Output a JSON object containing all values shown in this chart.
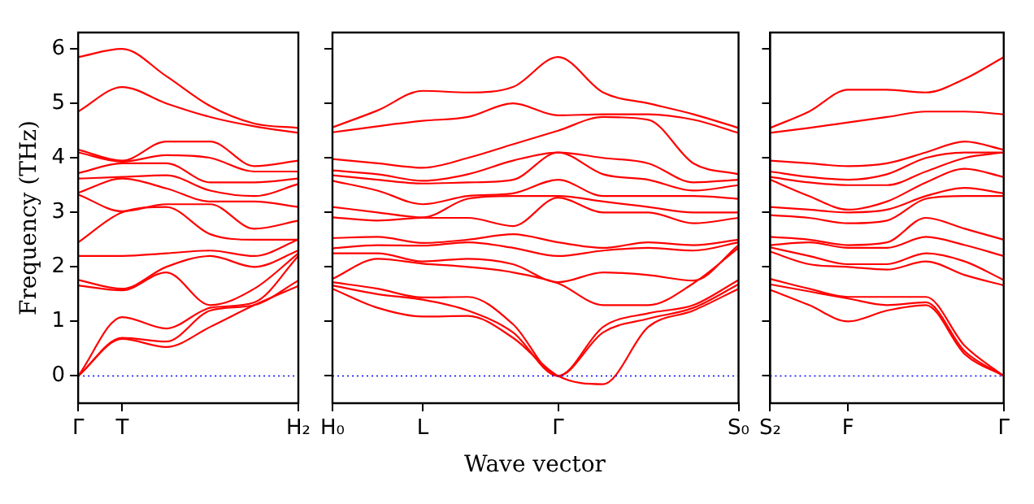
{
  "chart_data": [
    {
      "type": "line",
      "ylabel": "Frequency (THz)",
      "categories": [
        "Γ",
        "T",
        null,
        null,
        null,
        "H₂"
      ],
      "ylim": [
        -0.5,
        6.3
      ],
      "yticks": [
        0,
        1,
        2,
        3,
        4,
        5,
        6
      ],
      "ref_lines": [
        {
          "axis": "y",
          "value": 0,
          "color": "#0000ff",
          "line_style": "dotted"
        }
      ],
      "series": [
        {
          "color": "#ff0000",
          "values": [
            0,
            0.68,
            0.53,
            0.9,
            1.3,
            1.65
          ]
        },
        {
          "color": "#ff0000",
          "values": [
            0,
            0.7,
            0.63,
            1.2,
            1.3,
            1.75
          ]
        },
        {
          "color": "#ff0000",
          "values": [
            0,
            1.08,
            0.87,
            1.25,
            1.35,
            2.2
          ]
        },
        {
          "color": "#ff0000",
          "values": [
            1.66,
            1.57,
            1.9,
            1.3,
            1.6,
            2.25
          ]
        },
        {
          "color": "#ff0000",
          "values": [
            1.76,
            1.6,
            2.0,
            2.2,
            2.0,
            2.3
          ]
        },
        {
          "color": "#ff0000",
          "values": [
            2.2,
            2.2,
            2.25,
            2.3,
            2.2,
            2.5
          ]
        },
        {
          "color": "#ff0000",
          "values": [
            2.45,
            3.0,
            3.1,
            2.6,
            2.5,
            2.5
          ]
        },
        {
          "color": "#ff0000",
          "values": [
            3.33,
            3.02,
            3.15,
            3.15,
            2.7,
            2.85
          ]
        },
        {
          "color": "#ff0000",
          "values": [
            3.36,
            3.62,
            3.44,
            3.2,
            3.2,
            3.1
          ]
        },
        {
          "color": "#ff0000",
          "values": [
            3.62,
            3.65,
            3.68,
            3.4,
            3.3,
            3.52
          ]
        },
        {
          "color": "#ff0000",
          "values": [
            3.72,
            3.9,
            3.9,
            3.55,
            3.55,
            3.62
          ]
        },
        {
          "color": "#ff0000",
          "values": [
            4.1,
            3.93,
            4.05,
            4.0,
            3.75,
            3.75
          ]
        },
        {
          "color": "#ff0000",
          "values": [
            4.15,
            3.95,
            4.3,
            4.3,
            3.85,
            3.95
          ]
        },
        {
          "color": "#ff0000",
          "values": [
            4.85,
            5.3,
            5.0,
            4.75,
            4.58,
            4.46
          ]
        },
        {
          "color": "#ff0000",
          "values": [
            5.85,
            6.0,
            5.5,
            4.95,
            4.63,
            4.55
          ]
        }
      ]
    },
    {
      "type": "line",
      "xlabel": "Wave vector",
      "tick_labels": "x",
      "categories": [
        "H₀",
        null,
        "L",
        null,
        null,
        "Γ",
        null,
        null,
        null,
        "S₀"
      ],
      "ylim": [
        -0.5,
        6.3
      ],
      "yticks": [
        {
          "value": 0,
          "label": null
        },
        {
          "value": 1,
          "label": null
        },
        {
          "value": 2,
          "label": null
        },
        {
          "value": 3,
          "label": null
        },
        {
          "value": 4,
          "label": null
        },
        {
          "value": 5,
          "label": null
        },
        {
          "value": 6,
          "label": null
        }
      ],
      "ref_lines": [
        {
          "axis": "y",
          "value": 0,
          "color": "#0000ff",
          "line_style": "dotted"
        }
      ],
      "series": [
        {
          "color": "#ff0000",
          "values": [
            1.6,
            1.25,
            1.09,
            1.1,
            0.7,
            0,
            -0.15,
            0.9,
            1.2,
            1.6
          ]
        },
        {
          "color": "#ff0000",
          "values": [
            1.66,
            1.5,
            1.4,
            1.2,
            0.8,
            0,
            0.8,
            1.05,
            1.25,
            1.68
          ]
        },
        {
          "color": "#ff0000",
          "values": [
            1.72,
            1.6,
            1.44,
            1.45,
            0.95,
            0,
            0.9,
            1.15,
            1.3,
            1.76
          ]
        },
        {
          "color": "#ff0000",
          "values": [
            1.78,
            2.15,
            2.06,
            2.0,
            1.9,
            1.7,
            1.3,
            1.3,
            1.7,
            2.35
          ]
        },
        {
          "color": "#ff0000",
          "values": [
            2.25,
            2.25,
            2.1,
            2.15,
            2.05,
            1.72,
            1.9,
            1.85,
            1.75,
            2.4
          ]
        },
        {
          "color": "#ff0000",
          "values": [
            2.34,
            2.4,
            2.39,
            2.45,
            2.35,
            2.2,
            2.3,
            2.35,
            2.3,
            2.45
          ]
        },
        {
          "color": "#ff0000",
          "values": [
            2.53,
            2.55,
            2.44,
            2.5,
            2.6,
            2.45,
            2.35,
            2.45,
            2.4,
            2.5
          ]
        },
        {
          "color": "#ff0000",
          "values": [
            2.91,
            2.85,
            2.9,
            2.9,
            2.75,
            3.27,
            3.0,
            3.0,
            2.8,
            2.9
          ]
        },
        {
          "color": "#ff0000",
          "values": [
            3.1,
            3.0,
            2.91,
            3.25,
            3.3,
            3.3,
            3.2,
            3.1,
            3.0,
            3.0
          ]
        },
        {
          "color": "#ff0000",
          "values": [
            3.58,
            3.4,
            3.15,
            3.3,
            3.35,
            3.6,
            3.3,
            3.3,
            3.3,
            3.25
          ]
        },
        {
          "color": "#ff0000",
          "values": [
            3.68,
            3.6,
            3.53,
            3.55,
            3.6,
            4.1,
            3.7,
            3.6,
            3.4,
            3.5
          ]
        },
        {
          "color": "#ff0000",
          "values": [
            3.77,
            3.7,
            3.58,
            3.7,
            3.95,
            4.1,
            4.0,
            3.9,
            3.55,
            3.6
          ]
        },
        {
          "color": "#ff0000",
          "values": [
            3.98,
            3.9,
            3.82,
            4.0,
            4.25,
            4.5,
            4.75,
            4.7,
            3.9,
            3.7
          ]
        },
        {
          "color": "#ff0000",
          "values": [
            4.47,
            4.58,
            4.68,
            4.75,
            5.0,
            4.78,
            4.8,
            4.8,
            4.7,
            4.46
          ]
        },
        {
          "color": "#ff0000",
          "values": [
            4.56,
            4.87,
            5.23,
            5.2,
            5.3,
            5.85,
            5.2,
            5.0,
            4.8,
            4.55
          ]
        }
      ]
    },
    {
      "type": "line",
      "tick_labels": "x",
      "categories": [
        "S₂",
        null,
        "F",
        null,
        null,
        null,
        "Γ"
      ],
      "ylim": [
        -0.5,
        6.3
      ],
      "yticks": [
        {
          "value": 0,
          "label": null
        },
        {
          "value": 1,
          "label": null
        },
        {
          "value": 2,
          "label": null
        },
        {
          "value": 3,
          "label": null
        },
        {
          "value": 4,
          "label": null
        },
        {
          "value": 5,
          "label": null
        },
        {
          "value": 6,
          "label": null
        }
      ],
      "ref_lines": [
        {
          "axis": "y",
          "value": 0,
          "color": "#0000ff",
          "line_style": "dotted"
        }
      ],
      "series": [
        {
          "color": "#ff0000",
          "values": [
            1.58,
            1.3,
            1.0,
            1.2,
            1.3,
            0.4,
            0
          ]
        },
        {
          "color": "#ff0000",
          "values": [
            1.68,
            1.55,
            1.42,
            1.3,
            1.35,
            0.45,
            0
          ]
        },
        {
          "color": "#ff0000",
          "values": [
            1.78,
            1.6,
            1.45,
            1.45,
            1.45,
            0.55,
            0
          ]
        },
        {
          "color": "#ff0000",
          "values": [
            2.28,
            2.05,
            2.0,
            1.95,
            2.1,
            1.85,
            1.66
          ]
        },
        {
          "color": "#ff0000",
          "values": [
            2.36,
            2.2,
            2.05,
            2.05,
            2.25,
            2.1,
            1.76
          ]
        },
        {
          "color": "#ff0000",
          "values": [
            2.4,
            2.45,
            2.35,
            2.35,
            2.55,
            2.4,
            2.2
          ]
        },
        {
          "color": "#ff0000",
          "values": [
            2.55,
            2.5,
            2.4,
            2.45,
            2.9,
            2.7,
            2.5
          ]
        },
        {
          "color": "#ff0000",
          "values": [
            2.95,
            2.9,
            2.8,
            2.85,
            3.25,
            3.3,
            3.3
          ]
        },
        {
          "color": "#ff0000",
          "values": [
            3.1,
            3.05,
            3.0,
            3.05,
            3.3,
            3.45,
            3.35
          ]
        },
        {
          "color": "#ff0000",
          "values": [
            3.6,
            3.3,
            3.05,
            3.2,
            3.55,
            3.8,
            3.65
          ]
        },
        {
          "color": "#ff0000",
          "values": [
            3.65,
            3.55,
            3.5,
            3.5,
            3.75,
            4.0,
            4.1
          ]
        },
        {
          "color": "#ff0000",
          "values": [
            3.75,
            3.65,
            3.6,
            3.7,
            4.0,
            4.1,
            4.1
          ]
        },
        {
          "color": "#ff0000",
          "values": [
            3.95,
            3.9,
            3.85,
            3.9,
            4.1,
            4.3,
            4.15
          ]
        },
        {
          "color": "#ff0000",
          "values": [
            4.46,
            4.55,
            4.65,
            4.75,
            4.85,
            4.85,
            4.8
          ]
        },
        {
          "color": "#ff0000",
          "values": [
            4.55,
            4.85,
            5.25,
            5.25,
            5.2,
            5.45,
            5.85
          ]
        }
      ]
    }
  ]
}
